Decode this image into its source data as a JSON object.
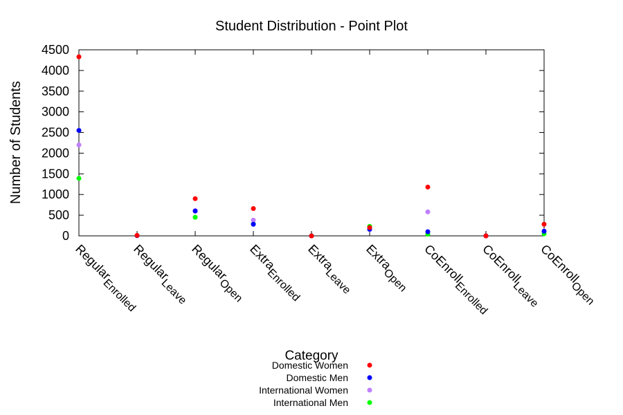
{
  "chart_data": {
    "type": "scatter",
    "title": "Student Distribution - Point Plot",
    "xlabel": "",
    "ylabel": "Number of Students",
    "ylim": [
      0,
      4500
    ],
    "yticks": [
      0,
      500,
      1000,
      1500,
      2000,
      2500,
      3000,
      3500,
      4000,
      4500
    ],
    "categories": [
      [
        "Regular",
        "Enrolled"
      ],
      [
        "Regular",
        "Leave"
      ],
      [
        "Regular",
        "Open"
      ],
      [
        "Extra",
        "Enrolled"
      ],
      [
        "Extra",
        "Leave"
      ],
      [
        "Extra",
        "Open"
      ],
      [
        "CoEnroll",
        "Enrolled"
      ],
      [
        "CoEnroll",
        "Leave"
      ],
      [
        "CoEnroll",
        "Open"
      ]
    ],
    "legend_title": "Category",
    "legend_position": "bottom-center",
    "grid": false,
    "series": [
      {
        "name": "Domestic Women",
        "color": "#ff0000",
        "values": [
          4330,
          10,
          900,
          660,
          0,
          200,
          1180,
          0,
          280
        ]
      },
      {
        "name": "Domestic Men",
        "color": "#0000ff",
        "values": [
          2550,
          5,
          600,
          280,
          0,
          160,
          100,
          0,
          110
        ]
      },
      {
        "name": "International Women",
        "color": "#bf7fff",
        "values": [
          2200,
          5,
          610,
          380,
          0,
          150,
          580,
          0,
          120
        ]
      },
      {
        "name": "International Men",
        "color": "#00ff00",
        "values": [
          1390,
          5,
          450,
          290,
          0,
          230,
          40,
          0,
          50
        ]
      }
    ]
  }
}
